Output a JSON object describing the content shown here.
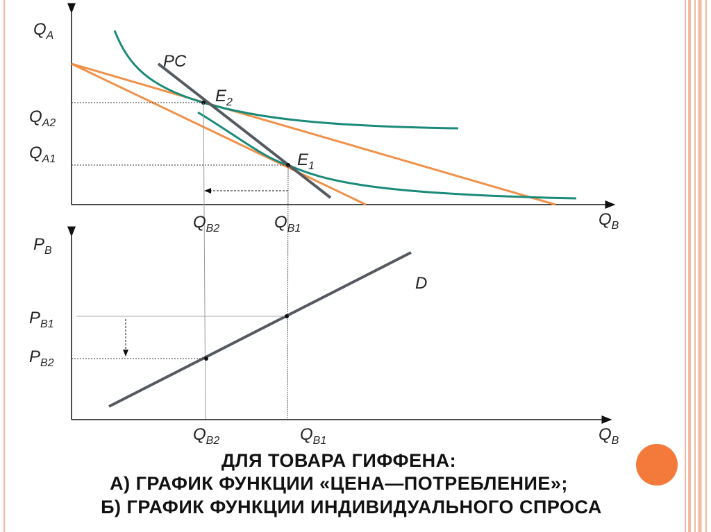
{
  "top_graph": {
    "y_label": {
      "main": "Q",
      "sub": "A"
    },
    "x_label": {
      "main": "Q",
      "sub": "B"
    },
    "y_ticks": [
      {
        "main": "Q",
        "sub": "A2"
      },
      {
        "main": "Q",
        "sub": "A1"
      }
    ],
    "x_ticks": [
      {
        "main": "Q",
        "sub": "B2"
      },
      {
        "main": "Q",
        "sub": "B1"
      }
    ],
    "curve_label": "PC",
    "points": [
      {
        "main": "E",
        "sub": "2"
      },
      {
        "main": "E",
        "sub": "1"
      }
    ]
  },
  "bottom_graph": {
    "y_label": {
      "main": "P",
      "sub": "B"
    },
    "x_label": {
      "main": "Q",
      "sub": "B"
    },
    "y_ticks": [
      {
        "main": "P",
        "sub": "B1"
      },
      {
        "main": "P",
        "sub": "B2"
      }
    ],
    "x_ticks": [
      {
        "main": "Q",
        "sub": "B2"
      },
      {
        "main": "Q",
        "sub": "B1"
      }
    ],
    "curve_label": "D"
  },
  "caption": [
    "ДЛЯ ТОВАРА ГИФФЕНА:",
    "А) ГРАФИК ФУНКЦИИ «ЦЕНА—ПОТРЕБЛЕНИЕ»;",
    "Б) ГРАФИК ФУНКЦИИ ИНДИВИДУАЛЬНОГО СПРОСА"
  ]
}
